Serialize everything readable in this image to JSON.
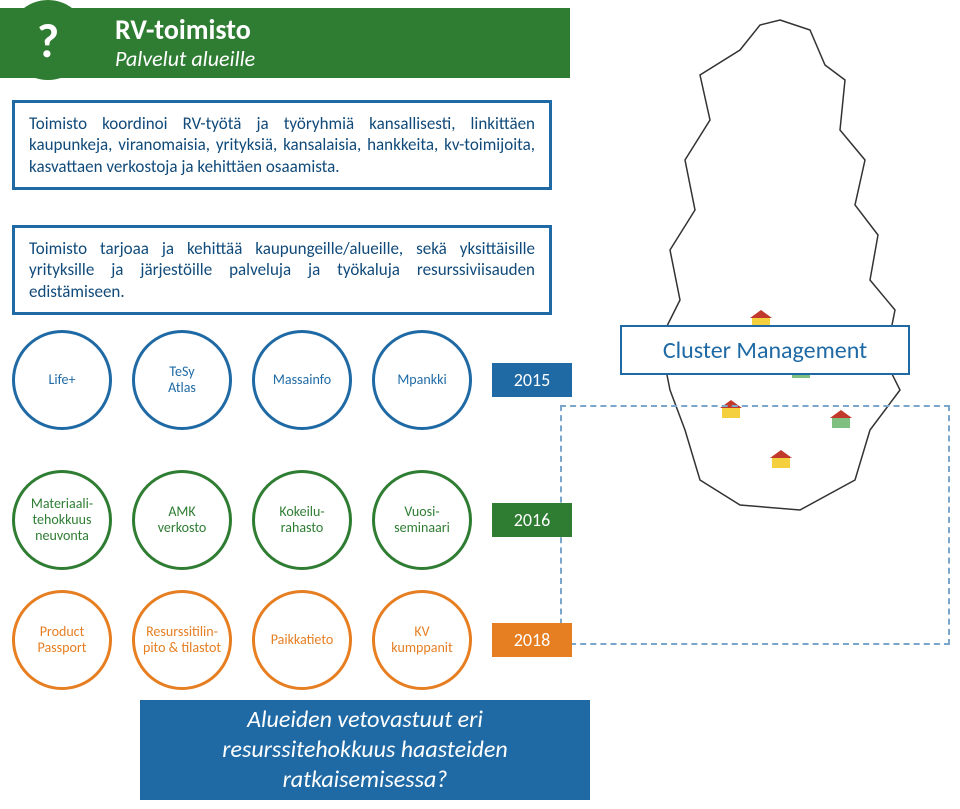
{
  "header": {
    "question_mark": "?",
    "title": "RV-toimisto",
    "subtitle": "Palvelut alueille"
  },
  "descriptions": {
    "p1": "Toimisto koordinoi RV-työtä ja työryhmiä kansallisesti, linkittäen kaupunkeja, viranomaisia, yrityksiä, kansalaisia, hankkeita, kv-toimijoita, kasvattaen verkostoja ja kehittäen osaamista.",
    "p2": "Toimisto tarjoaa ja kehittää kaupungeille/alueille, sekä yksittäisille yrityksille ja järjestöille palveluja ja työkaluja resurssiviisauden edistämiseen."
  },
  "rows": {
    "row1": {
      "items": [
        "Life+",
        "TeSy\nAtlas",
        "Massainfo",
        "Mpankki"
      ],
      "year": "2015",
      "color": "#1f6aa5"
    },
    "row2": {
      "items": [
        "Materiaali-\ntehokkuus\nneuvonta",
        "AMK\nverkosto",
        "Kokeilu-\nrahasto",
        "Vuosi-\nseminaari"
      ],
      "year": "2016",
      "color": "#2e7d32"
    },
    "row3": {
      "items": [
        "Product\nPassport",
        "Resurssitilin-\npito & tilastot",
        "Paikkatieto",
        "KV\nkumppanit"
      ],
      "year": "2018",
      "color": "#e67e22"
    }
  },
  "cluster_label": "Cluster Management",
  "bottom_text": "Alueiden vetovastuut eri resurssitehokkuus haasteiden ratkaisemisessa?",
  "colors": {
    "header_bg": "#2e7d32",
    "box_border": "#1f6aa5",
    "text_blue": "#104a7a",
    "dashed": "#7aa6cc",
    "map_stroke": "#333333"
  },
  "map": {
    "outline_color": "#333333",
    "fill": "#ffffff"
  }
}
